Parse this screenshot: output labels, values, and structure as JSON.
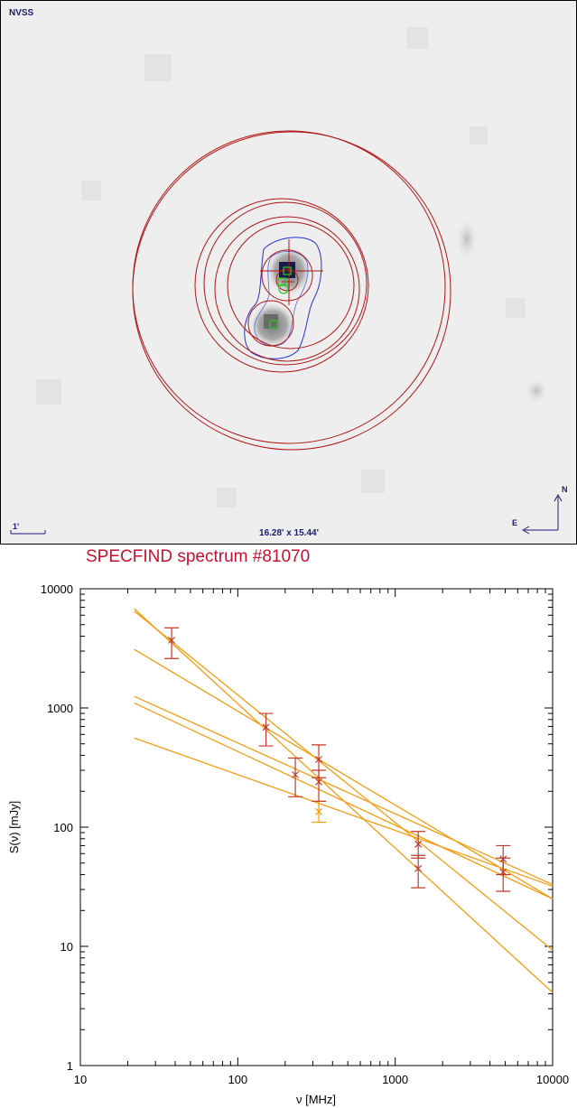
{
  "image_panel": {
    "survey": "NVSS",
    "scale_bar_label": "1'",
    "fov_label": "16.28' x 15.44'",
    "compass_north": "N",
    "compass_east": "E"
  },
  "chart_data": {
    "type": "scatter",
    "title": "SPECFIND spectrum #81070",
    "xlabel": "ν [MHz]",
    "ylabel": "S(ν) [mJy]",
    "xscale": "log",
    "yscale": "log",
    "xlim": [
      10,
      10000
    ],
    "ylim": [
      1,
      10000
    ],
    "xticks": [
      "10",
      "100",
      "1000",
      "10000"
    ],
    "yticks": [
      "1",
      "10",
      "100",
      "1000",
      "10000"
    ],
    "grid": false,
    "colors": {
      "measurement": "#c0392b",
      "highlight": "#f0a000",
      "fit": "#f39c12",
      "title": "#c8102e"
    },
    "measurements": [
      {
        "x": 38,
        "y": 3700,
        "yerr_low": 2600,
        "yerr_high": 4700
      },
      {
        "x": 151,
        "y": 690,
        "yerr_low": 480,
        "yerr_high": 900
      },
      {
        "x": 232,
        "y": 275,
        "yerr_low": 180,
        "yerr_high": 380
      },
      {
        "x": 327,
        "y": 370,
        "yerr_low": 260,
        "yerr_high": 490
      },
      {
        "x": 327,
        "y": 240,
        "yerr_low": 165,
        "yerr_high": 300
      },
      {
        "x": 1400,
        "y": 72,
        "yerr_low": 55,
        "yerr_high": 92
      },
      {
        "x": 1400,
        "y": 45,
        "yerr_low": 31,
        "yerr_high": 58
      },
      {
        "x": 4850,
        "y": 54,
        "yerr_low": 40,
        "yerr_high": 70
      },
      {
        "x": 4850,
        "y": 42,
        "yerr_low": 29,
        "yerr_high": 55
      }
    ],
    "highlighted_measurements": [
      {
        "x": 327,
        "y": 135,
        "yerr_low": 110,
        "yerr_high": 165
      }
    ],
    "fits": [
      {
        "x": [
          22,
          10000
        ],
        "y": [
          6800,
          4.1
        ]
      },
      {
        "x": [
          22,
          10000
        ],
        "y": [
          6500,
          9.3
        ]
      },
      {
        "x": [
          22,
          10000
        ],
        "y": [
          3100,
          25
        ]
      },
      {
        "x": [
          22,
          10000
        ],
        "y": [
          1250,
          33
        ]
      },
      {
        "x": [
          22,
          10000
        ],
        "y": [
          1100,
          25
        ]
      },
      {
        "x": [
          22,
          10000
        ],
        "y": [
          560,
          32
        ]
      }
    ]
  }
}
